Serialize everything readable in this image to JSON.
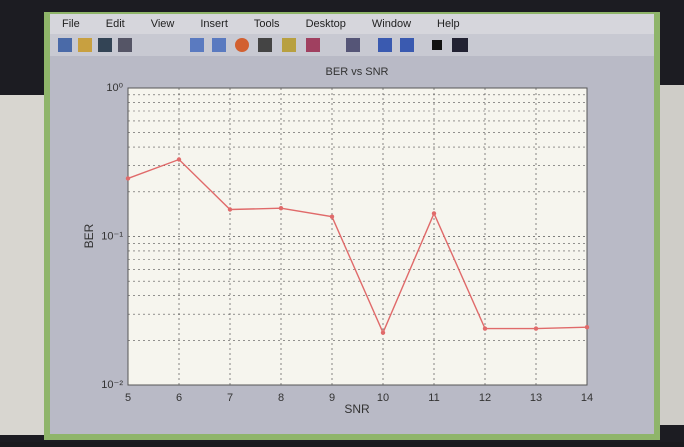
{
  "menu": [
    "File",
    "Edit",
    "View",
    "Insert",
    "Tools",
    "Desktop",
    "Window",
    "Help"
  ],
  "chart_data": {
    "type": "line",
    "title": "BER vs SNR",
    "xlabel": "SNR",
    "ylabel": "BER",
    "x": [
      5,
      6,
      7,
      8,
      9,
      10,
      11,
      12,
      13,
      14
    ],
    "series": [
      {
        "name": "BER",
        "color": "#e06a6a",
        "values": [
          0.246,
          0.33,
          0.152,
          0.155,
          0.136,
          0.0225,
          0.143,
          0.024,
          0.024,
          0.0245
        ]
      }
    ],
    "xlim": [
      5,
      14
    ],
    "xticks": [
      5,
      6,
      7,
      8,
      9,
      10,
      11,
      12,
      13,
      14
    ],
    "ylim": [
      0.01,
      1
    ],
    "yticks": [
      {
        "value": 0.01,
        "label": "10⁻²"
      },
      {
        "value": 0.1,
        "label": "10⁻¹"
      },
      {
        "value": 1,
        "label": "10⁰"
      }
    ],
    "log_y": true,
    "grid": true,
    "minor_grid": true
  }
}
